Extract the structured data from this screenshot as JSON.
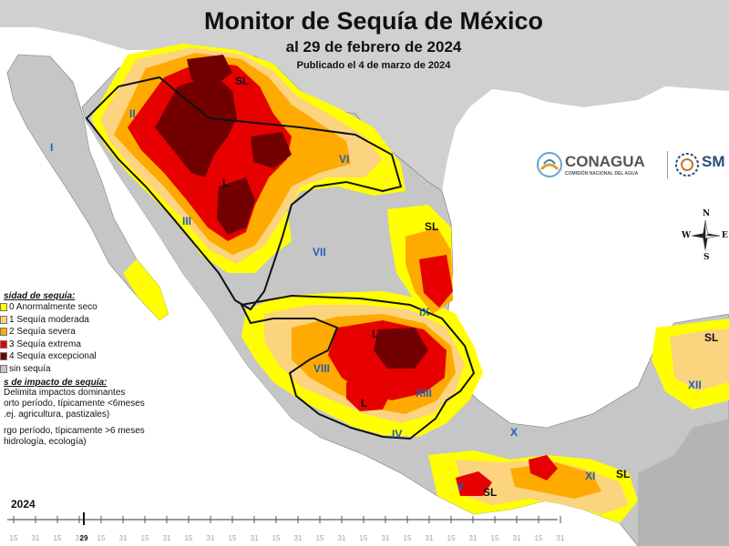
{
  "header": {
    "title": "Monitor de Sequía de México",
    "date_line": "al 29 de febrero de 2024",
    "published": "Publicado el 4 de marzo de 2024"
  },
  "legend": {
    "intensity_heading": "sidad de sequía:",
    "categories": [
      {
        "label": "0 Anormalmente seco",
        "color": "#ffff00"
      },
      {
        "label": "1 Sequía moderada",
        "color": "#fcd37f"
      },
      {
        "label": "2 Sequía severa",
        "color": "#ffaa00"
      },
      {
        "label": "3 Sequía extrema",
        "color": "#e60000"
      },
      {
        "label": "4 Sequía excepcional",
        "color": "#730000"
      },
      {
        "label": "sin sequía",
        "color": "#c6c6c6"
      }
    ],
    "impact_heading": "s de impacto de sequía:",
    "impact_lines": [
      "Delimita impactos dominantes",
      "orto período, típicamente <6meses",
      ".ej. agricultura, pastizales)",
      "rgo período, típicamente >6 meses",
      "hidrología, ecología)"
    ]
  },
  "regions": [
    {
      "label": "I",
      "name": "region-i"
    },
    {
      "label": "II",
      "name": "region-ii"
    },
    {
      "label": "III",
      "name": "region-iii"
    },
    {
      "label": "VI",
      "name": "region-vi"
    },
    {
      "label": "VII",
      "name": "region-vii"
    },
    {
      "label": "VIII",
      "name": "region-viii"
    },
    {
      "label": "IX",
      "name": "region-ix"
    },
    {
      "label": "XIII",
      "name": "region-xiii"
    },
    {
      "label": "IV",
      "name": "region-iv"
    },
    {
      "label": "X",
      "name": "region-x"
    },
    {
      "label": "XI",
      "name": "region-xi"
    },
    {
      "label": "XII",
      "name": "region-xii"
    },
    {
      "label": "V",
      "name": "region-v"
    }
  ],
  "impact_labels": [
    "SL",
    "L",
    "L",
    "SL",
    "L",
    "SL",
    "SL",
    "SL"
  ],
  "logos": {
    "conagua": "CONAGUA",
    "conagua_sub": "COMISIÓN NACIONAL DEL AGUA",
    "smn": "SM"
  },
  "compass": {
    "n": "N",
    "s": "S",
    "e": "E",
    "w": "W"
  },
  "timeline": {
    "year": "2024",
    "ticks": [
      "15",
      "31",
      "15",
      "31",
      "15",
      "31",
      "15",
      "31",
      "15",
      "31",
      "15",
      "31",
      "15",
      "31",
      "15",
      "31",
      "15",
      "31",
      "15",
      "31",
      "15",
      "31",
      "15",
      "31",
      "15",
      "31"
    ],
    "current_day": "29"
  },
  "colors": {
    "land_no_drought": "#c6c6c6",
    "other_land": "#b4b4b4",
    "water": "#ffffff",
    "region_label": "#1f5fb8"
  }
}
